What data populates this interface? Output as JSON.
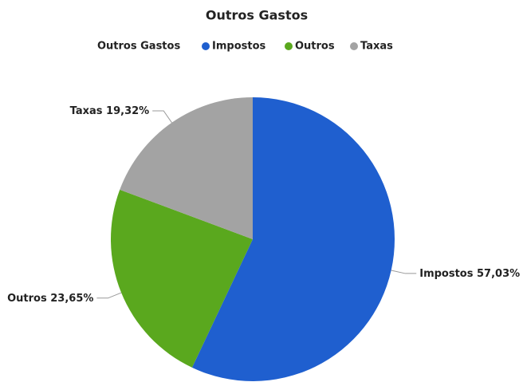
{
  "chart_data": {
    "type": "pie",
    "title": "Outros Gastos",
    "legend_title": "Outros Gastos",
    "categories": [
      "Impostos",
      "Outros",
      "Taxas"
    ],
    "values": [
      57.03,
      23.65,
      19.32
    ],
    "value_labels": [
      "57,03%",
      "23,65%",
      "19,32%"
    ],
    "colors": [
      "#1f5fcf",
      "#5aa81e",
      "#a3a3a3"
    ]
  }
}
